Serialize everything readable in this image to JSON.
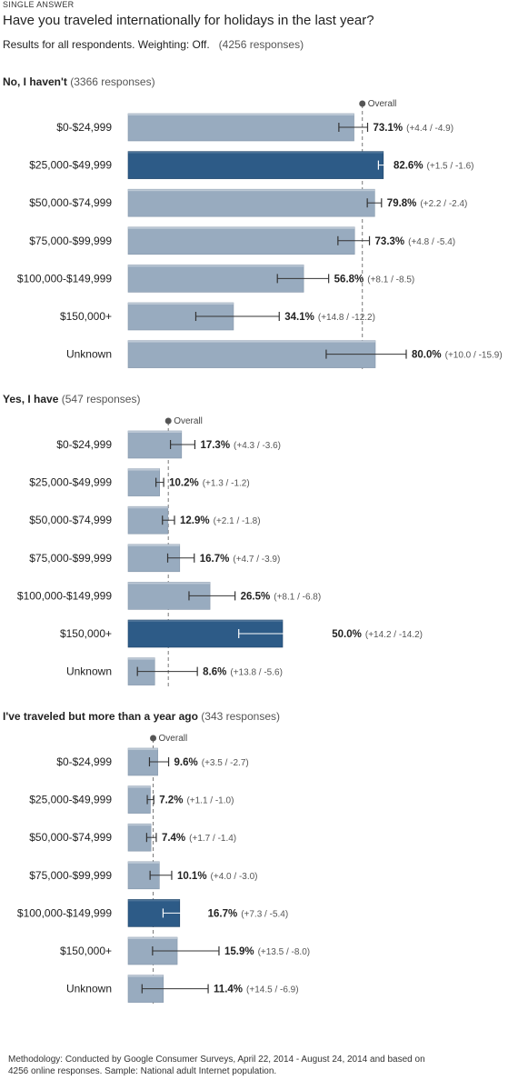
{
  "header": {
    "kicker": "SINGLE ANSWER",
    "question": "Have you traveled internationally for holidays in the last year?",
    "subtitle": "Results for all respondents. Weighting: Off.",
    "responses": "(4256 responses)"
  },
  "footer": {
    "line1": "Methodology: Conducted by Google Consumer Surveys, April 22, 2014 - August 24, 2014 and based on",
    "line2": "4256 online responses. Sample: National adult Internet population."
  },
  "colors": {
    "bar_light": "#98abbf",
    "bar_dark": "#2d5b87",
    "error_line": "#333333",
    "overall_line": "#777777"
  },
  "chart_data": [
    {
      "type": "bar",
      "orientation": "horizontal",
      "title": "No, I haven't",
      "responses": "(3366 responses)",
      "overall_label": "Overall",
      "overall": 75.8,
      "categories": [
        "$0-$24,999",
        "$25,000-$49,999",
        "$50,000-$74,999",
        "$75,000-$99,999",
        "$100,000-$149,999",
        "$150,000+",
        "Unknown"
      ],
      "values": [
        73.1,
        82.6,
        79.8,
        73.3,
        56.8,
        34.1,
        80.0
      ],
      "value_labels": [
        "73.1%",
        "82.6%",
        "79.8%",
        "73.3%",
        "56.8%",
        "34.1%",
        "80.0%"
      ],
      "error_plus": [
        4.4,
        1.5,
        2.2,
        4.8,
        8.1,
        14.8,
        10.0
      ],
      "error_minus": [
        4.9,
        1.6,
        2.4,
        5.4,
        8.5,
        12.2,
        15.9
      ],
      "ci_labels": [
        "(+4.4 / -4.9)",
        "(+1.5 / -1.6)",
        "(+2.2 / -2.4)",
        "(+4.8 / -5.4)",
        "(+8.1 / -8.5)",
        "(+14.8 / -12.2)",
        "(+10.0 / -15.9)"
      ],
      "highlight": [
        false,
        true,
        false,
        false,
        false,
        false,
        false
      ]
    },
    {
      "type": "bar",
      "orientation": "horizontal",
      "title": "Yes, I have",
      "responses": "(547 responses)",
      "overall_label": "Overall",
      "overall": 13.0,
      "categories": [
        "$0-$24,999",
        "$25,000-$49,999",
        "$50,000-$74,999",
        "$75,000-$99,999",
        "$100,000-$149,999",
        "$150,000+",
        "Unknown"
      ],
      "values": [
        17.3,
        10.2,
        12.9,
        16.7,
        26.5,
        50.0,
        8.6
      ],
      "value_labels": [
        "17.3%",
        "10.2%",
        "12.9%",
        "16.7%",
        "26.5%",
        "50.0%",
        "8.6%"
      ],
      "error_plus": [
        4.3,
        1.3,
        2.1,
        4.7,
        8.1,
        14.2,
        13.8
      ],
      "error_minus": [
        3.6,
        1.2,
        1.8,
        3.9,
        6.8,
        14.2,
        5.6
      ],
      "ci_labels": [
        "(+4.3 / -3.6)",
        "(+1.3 / -1.2)",
        "(+2.1 / -1.8)",
        "(+4.7 / -3.9)",
        "(+8.1 / -6.8)",
        "(+14.2 / -14.2)",
        "(+13.8 / -5.6)"
      ],
      "highlight": [
        false,
        false,
        false,
        false,
        false,
        true,
        false
      ]
    },
    {
      "type": "bar",
      "orientation": "horizontal",
      "title": "I've traveled but more than a year ago",
      "responses": "(343 responses)",
      "overall_label": "Overall",
      "overall": 8.1,
      "categories": [
        "$0-$24,999",
        "$25,000-$49,999",
        "$50,000-$74,999",
        "$75,000-$99,999",
        "$100,000-$149,999",
        "$150,000+",
        "Unknown"
      ],
      "values": [
        9.6,
        7.2,
        7.4,
        10.1,
        16.7,
        15.9,
        11.4
      ],
      "value_labels": [
        "9.6%",
        "7.2%",
        "7.4%",
        "10.1%",
        "16.7%",
        "15.9%",
        "11.4%"
      ],
      "error_plus": [
        3.5,
        1.1,
        1.7,
        4.0,
        7.3,
        13.5,
        14.5
      ],
      "error_minus": [
        2.7,
        1.0,
        1.4,
        3.0,
        5.4,
        8.0,
        6.9
      ],
      "ci_labels": [
        "(+3.5 / -2.7)",
        "(+1.1 / -1.0)",
        "(+1.7 / -1.4)",
        "(+4.0 / -3.0)",
        "(+7.3 / -5.4)",
        "(+13.5 / -8.0)",
        "(+14.5 / -6.9)"
      ],
      "highlight": [
        false,
        false,
        false,
        false,
        true,
        false,
        false
      ]
    }
  ]
}
